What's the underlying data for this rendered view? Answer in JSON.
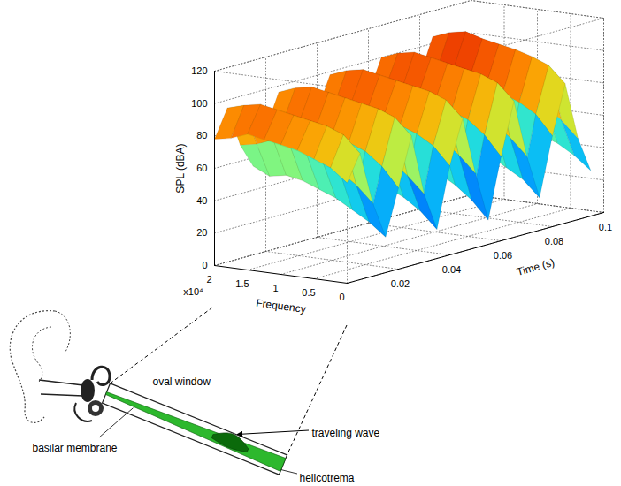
{
  "chart_data": {
    "type": "surface",
    "xlabel": "Time (s)",
    "ylabel": "Frequency",
    "y_multiplier": "x10⁴",
    "zlabel": "SPL (dBA)",
    "xlim": [
      0,
      0.1
    ],
    "xticks": [
      0.02,
      0.04,
      0.06,
      0.08,
      0.1
    ],
    "ylim": [
      0,
      2
    ],
    "yticks": [
      0,
      0.5,
      1,
      1.5,
      2
    ],
    "zlim": [
      0,
      120
    ],
    "zticks": [
      0,
      20,
      40,
      60,
      80,
      100,
      120
    ],
    "grid": true,
    "x": [
      0,
      0.005,
      0.01,
      0.015,
      0.02,
      0.025,
      0.03,
      0.035,
      0.04,
      0.045,
      0.05,
      0.055,
      0.06,
      0.065,
      0.07,
      0.075,
      0.08,
      0.085,
      0.09,
      0.095
    ],
    "y": [
      0,
      0.25,
      0.5,
      0.75,
      1,
      1.25,
      1.5,
      1.75,
      2
    ],
    "z": [
      [
        62,
        70,
        74,
        78,
        80,
        82,
        84,
        80,
        78
      ],
      [
        78,
        88,
        92,
        94,
        96,
        98,
        100,
        98,
        95
      ],
      [
        45,
        55,
        62,
        66,
        70,
        74,
        76,
        72,
        70
      ],
      [
        22,
        30,
        36,
        42,
        46,
        50,
        52,
        50,
        55
      ],
      [
        50,
        62,
        70,
        74,
        78,
        80,
        82,
        80,
        76
      ],
      [
        80,
        90,
        94,
        96,
        98,
        100,
        102,
        100,
        96
      ],
      [
        42,
        52,
        60,
        66,
        70,
        72,
        75,
        74,
        70
      ],
      [
        18,
        28,
        35,
        40,
        45,
        48,
        50,
        52,
        50
      ],
      [
        55,
        66,
        72,
        76,
        80,
        82,
        84,
        82,
        78
      ],
      [
        82,
        92,
        96,
        98,
        100,
        102,
        104,
        102,
        98
      ],
      [
        46,
        56,
        64,
        68,
        72,
        75,
        78,
        76,
        72
      ],
      [
        15,
        26,
        34,
        40,
        44,
        48,
        52,
        50,
        52
      ],
      [
        52,
        64,
        72,
        76,
        80,
        83,
        85,
        84,
        80
      ],
      [
        84,
        94,
        98,
        100,
        102,
        104,
        106,
        104,
        100
      ],
      [
        48,
        58,
        66,
        70,
        74,
        77,
        80,
        78,
        74
      ],
      [
        20,
        30,
        36,
        42,
        46,
        50,
        54,
        52,
        55
      ],
      [
        56,
        68,
        74,
        78,
        82,
        85,
        88,
        86,
        82
      ],
      [
        86,
        96,
        100,
        103,
        105,
        107,
        110,
        108,
        104
      ],
      [
        50,
        60,
        68,
        72,
        76,
        80,
        82,
        80,
        76
      ],
      [
        28,
        36,
        42,
        46,
        50,
        54,
        56,
        54,
        58
      ]
    ],
    "annotations": [
      "oval window",
      "traveling wave",
      "basilar membrane",
      "helicotrema"
    ]
  }
}
